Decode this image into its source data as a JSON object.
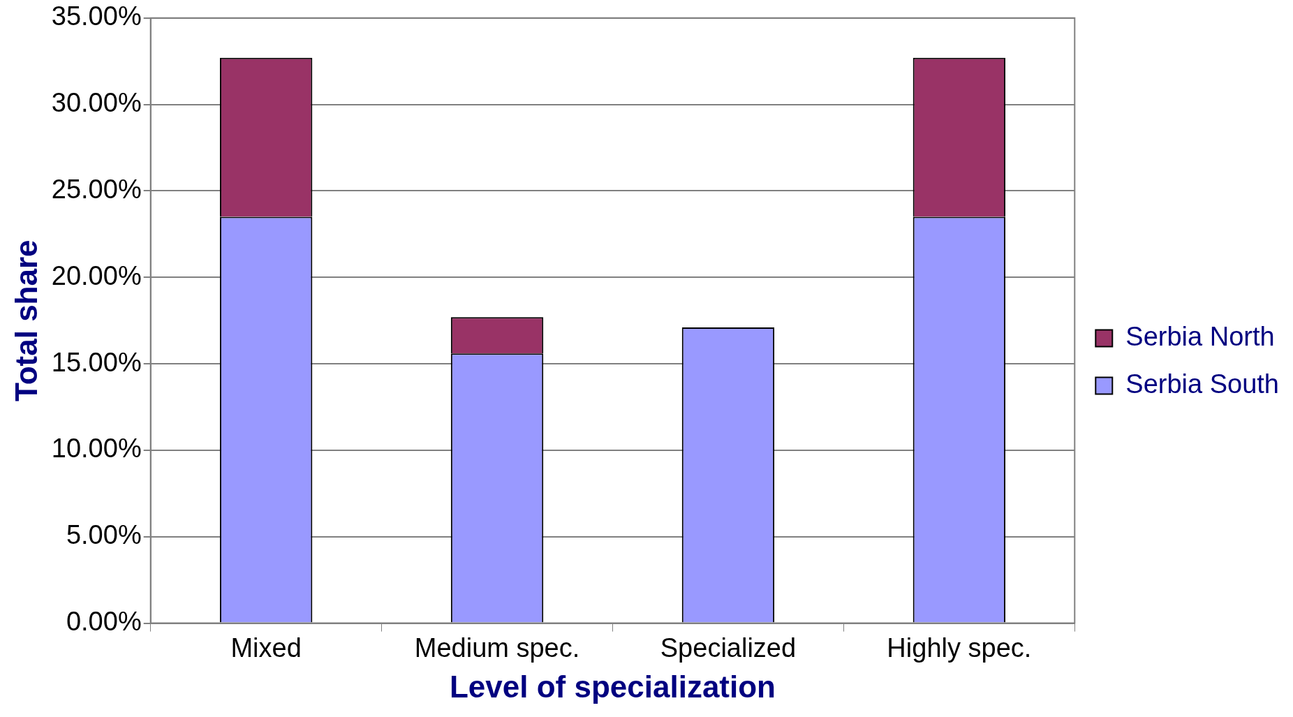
{
  "chart_data": {
    "type": "bar",
    "stacked": true,
    "xlabel": "Level of specialization",
    "ylabel": "Total share",
    "categories": [
      "Mixed",
      "Medium spec.",
      "Specialized",
      "Highly spec."
    ],
    "series": [
      {
        "name": "Serbia South",
        "color": "#9999ff",
        "values": [
          23.5,
          15.6,
          17.1,
          23.5
        ]
      },
      {
        "name": "Serbia North",
        "color": "#993366",
        "values": [
          9.2,
          2.1,
          0,
          9.2
        ]
      }
    ],
    "ylim": [
      0,
      35
    ],
    "yticks": [
      {
        "value": 0,
        "label": "0.00%"
      },
      {
        "value": 5,
        "label": "5.00%"
      },
      {
        "value": 10,
        "label": "10.00%"
      },
      {
        "value": 15,
        "label": "15.00%"
      },
      {
        "value": 20,
        "label": "20.00%"
      },
      {
        "value": 25,
        "label": "25.00%"
      },
      {
        "value": 30,
        "label": "30.00%"
      },
      {
        "value": 35,
        "label": "35.00%"
      }
    ],
    "grid": "y",
    "legend": "right"
  }
}
